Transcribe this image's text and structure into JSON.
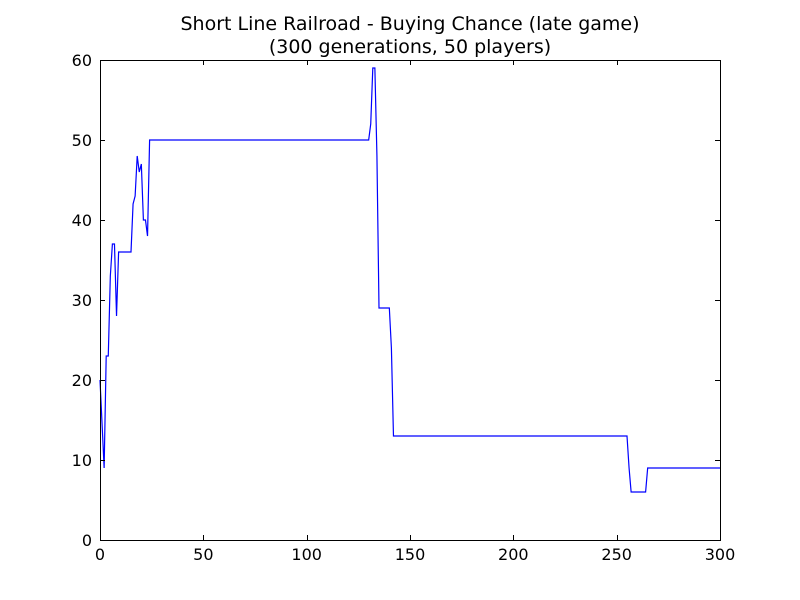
{
  "chart_data": {
    "type": "line",
    "title": "Short Line Railroad - Buying Chance (late game)",
    "subtitle": "(300 generations, 50 players)",
    "xlabel": "",
    "ylabel": "",
    "xlim": [
      0,
      300
    ],
    "ylim": [
      0,
      60
    ],
    "xticks": [
      0,
      50,
      100,
      150,
      200,
      250,
      300
    ],
    "yticks": [
      0,
      10,
      20,
      30,
      40,
      50,
      60
    ],
    "grid": false,
    "legend": "none",
    "series": [
      {
        "color": "#0000ff",
        "x": [
          0,
          2,
          3,
          4,
          5,
          6,
          7,
          8,
          9,
          10,
          11,
          15,
          16,
          17,
          18,
          19,
          20,
          21,
          22,
          23,
          24,
          25,
          26,
          27,
          130,
          131,
          132,
          133,
          134,
          135,
          136,
          140,
          141,
          142,
          143,
          255,
          256,
          257,
          258,
          264,
          265,
          266,
          300
        ],
        "y": [
          20,
          9,
          23,
          23,
          33,
          37,
          37,
          28,
          36,
          36,
          36,
          36,
          42,
          43,
          48,
          46,
          47,
          40,
          40,
          38,
          50,
          50,
          50,
          50,
          50,
          52,
          59,
          59,
          48,
          29,
          29,
          29,
          24,
          13,
          13,
          13,
          9,
          6,
          6,
          6,
          9,
          9,
          9
        ]
      }
    ]
  }
}
